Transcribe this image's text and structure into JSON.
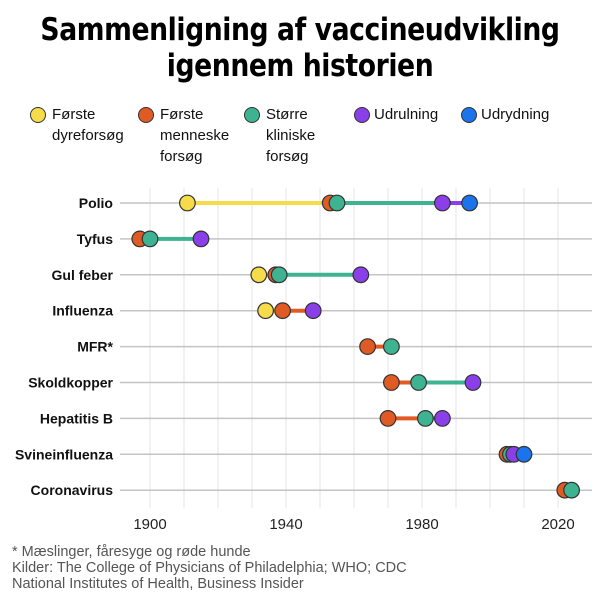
{
  "title_line1": "Sammenligning af vaccineudvikling",
  "title_line2": "igennem historien",
  "chart_data": {
    "type": "dot-range",
    "title": "Sammenligning af vaccineudvikling igennem historien",
    "xlim": [
      1892,
      2027
    ],
    "xticks": [
      1900,
      1940,
      1980,
      2020
    ],
    "grid": "vertical every 10 years",
    "legend_placement": "top",
    "stages": [
      {
        "key": "animal",
        "label": "Første dyreforsøg",
        "lines": [
          "Første",
          "dyreforsøg"
        ],
        "color": "#F6DB4A"
      },
      {
        "key": "human",
        "label": "Første menneske forsøg",
        "lines": [
          "Første",
          "menneske",
          "forsøg"
        ],
        "color": "#E05A24"
      },
      {
        "key": "clinical",
        "label": "Større kliniske forsøg",
        "lines": [
          "Større",
          "kliniske",
          "forsøg"
        ],
        "color": "#3DB391"
      },
      {
        "key": "rollout",
        "label": "Udrulning",
        "lines": [
          "Udrulning"
        ],
        "color": "#8A3FE8"
      },
      {
        "key": "eradication",
        "label": "Udrydning",
        "lines": [
          "Udrydning"
        ],
        "color": "#1C74EA"
      }
    ],
    "diseases": [
      {
        "name": "Polio",
        "events": {
          "animal": 1911,
          "human": 1953,
          "clinical": 1955,
          "rollout": 1986,
          "eradication": 1994
        }
      },
      {
        "name": "Tyfus",
        "events": {
          "human": 1897,
          "clinical": 1900,
          "rollout": 1915
        }
      },
      {
        "name": "Gul feber",
        "events": {
          "animal": 1932,
          "human": 1937,
          "clinical": 1938,
          "rollout": 1962
        }
      },
      {
        "name": "Influenza",
        "events": {
          "animal": 1934,
          "human": 1939,
          "rollout": 1948
        }
      },
      {
        "name": "MFR*",
        "events": {
          "human": 1964,
          "clinical": 1971
        }
      },
      {
        "name": "Skoldkopper",
        "events": {
          "human": 1971,
          "clinical": 1979,
          "rollout": 1995
        }
      },
      {
        "name": "Hepatitis B",
        "events": {
          "human": 1970,
          "clinical": 1981,
          "rollout": 1986
        }
      },
      {
        "name": "Svineinfluenza",
        "events": {
          "human": 2005,
          "clinical": 2006,
          "rollout": 2007,
          "eradication": 2010
        }
      },
      {
        "name": "Coronavirus",
        "events": {
          "human": 2022,
          "clinical": 2024
        }
      }
    ]
  },
  "footnotes": [
    "* Mæslinger, fåresyge og røde hunde",
    "Kilder: The College of Physicians of Philadelphia; WHO; CDC",
    "National Institutes of Health, Business Insider"
  ]
}
